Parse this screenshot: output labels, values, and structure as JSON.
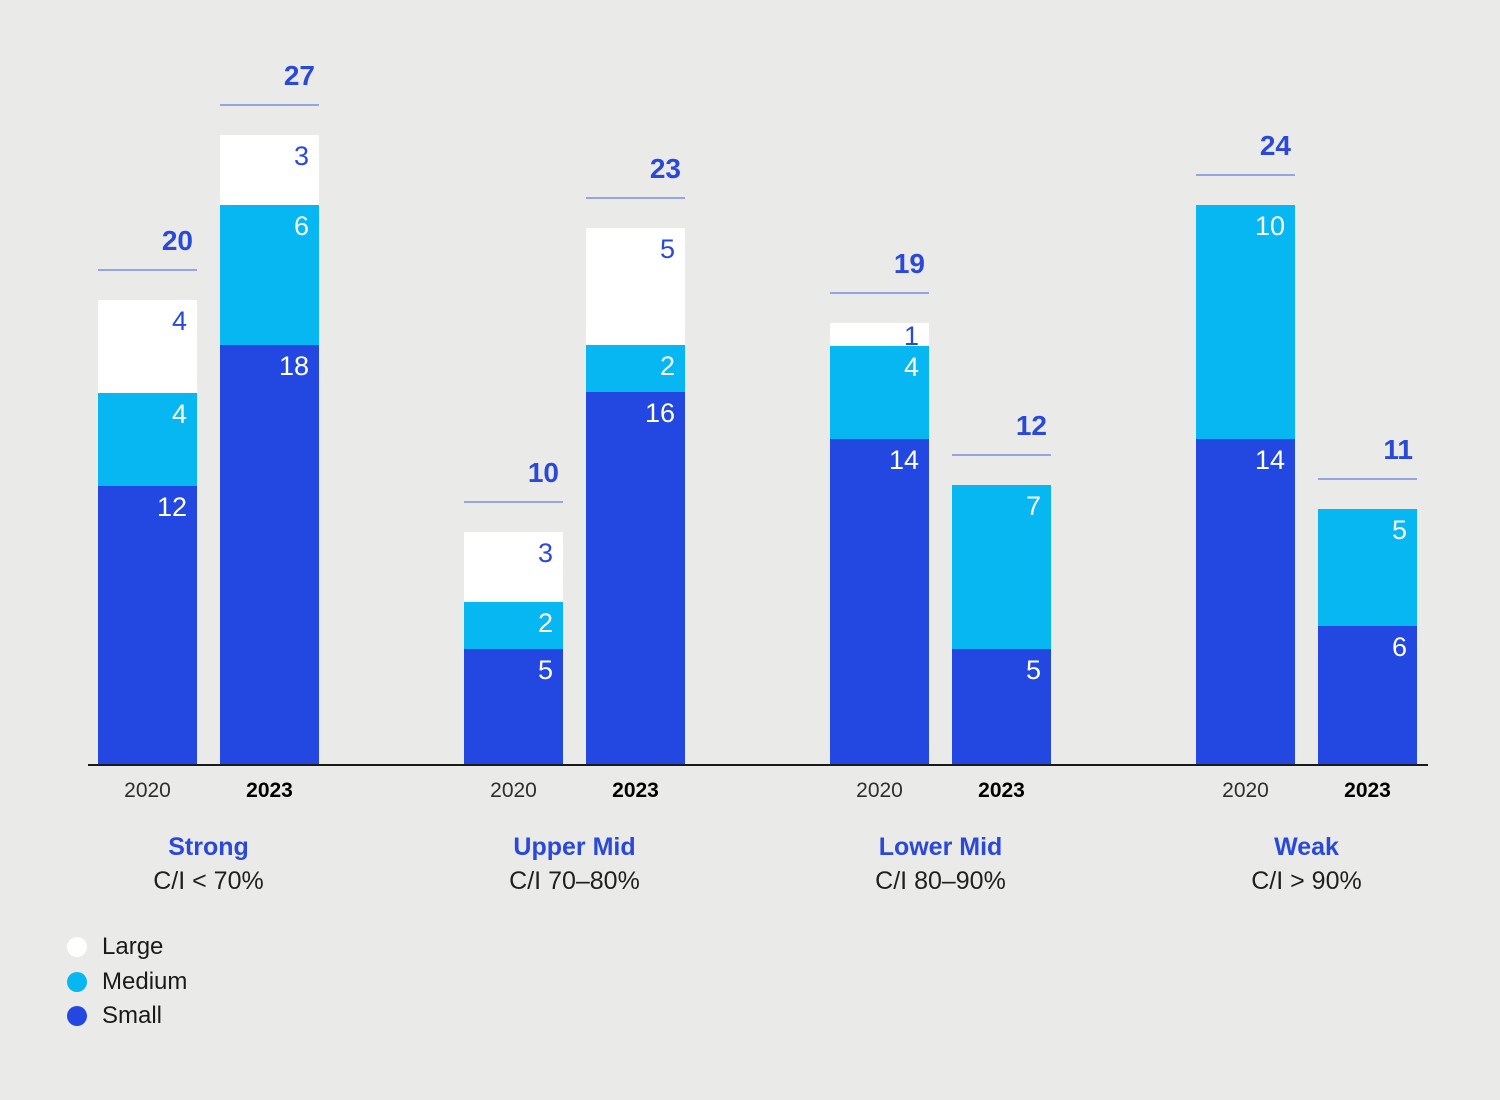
{
  "chart_data": {
    "type": "bar",
    "stacked": true,
    "stack_order_bottom_to_top": [
      "small",
      "medium",
      "large"
    ],
    "categories": [
      "2020",
      "2023"
    ],
    "groups": [
      {
        "label": "Strong",
        "sublabel": "C/I < 70%",
        "bars": [
          {
            "year": "2020",
            "total": 20,
            "segments": {
              "small": 12,
              "medium": 4,
              "large": 4
            }
          },
          {
            "year": "2023",
            "total": 27,
            "segments": {
              "small": 18,
              "medium": 6,
              "large": 3
            }
          }
        ]
      },
      {
        "label": "Upper Mid",
        "sublabel": "C/I 70–80%",
        "bars": [
          {
            "year": "2020",
            "total": 10,
            "segments": {
              "small": 5,
              "medium": 2,
              "large": 3
            }
          },
          {
            "year": "2023",
            "total": 23,
            "segments": {
              "small": 16,
              "medium": 2,
              "large": 5
            }
          }
        ]
      },
      {
        "label": "Lower Mid",
        "sublabel": "C/I 80–90%",
        "bars": [
          {
            "year": "2020",
            "total": 19,
            "segments": {
              "small": 14,
              "medium": 4,
              "large": 1
            }
          },
          {
            "year": "2023",
            "total": 12,
            "segments": {
              "small": 5,
              "medium": 7,
              "large": 0
            }
          }
        ]
      },
      {
        "label": "Weak",
        "sublabel": "C/I > 90%",
        "bars": [
          {
            "year": "2020",
            "total": 24,
            "segments": {
              "small": 14,
              "medium": 10,
              "large": 0
            }
          },
          {
            "year": "2023",
            "total": 11,
            "segments": {
              "small": 6,
              "medium": 5,
              "large": 0
            }
          }
        ]
      }
    ],
    "legend": [
      {
        "name": "Large",
        "color": "#FFFFFF"
      },
      {
        "name": "Medium",
        "color": "#06B7F2"
      },
      {
        "name": "Small",
        "color": "#2248E1"
      }
    ]
  },
  "colors": {
    "background": "#EAEAE8",
    "small": "#2248E1",
    "medium": "#06B7F2",
    "large": "#FFFFFF",
    "accent_text": "#2A49D8",
    "underline": "#96A4E3",
    "axis": "#1A1A1A",
    "tick": "#2E2E2E",
    "tick_bold": "#000000",
    "sublabel": "#1F1F1F",
    "legend_text": "#1A1A1A"
  }
}
